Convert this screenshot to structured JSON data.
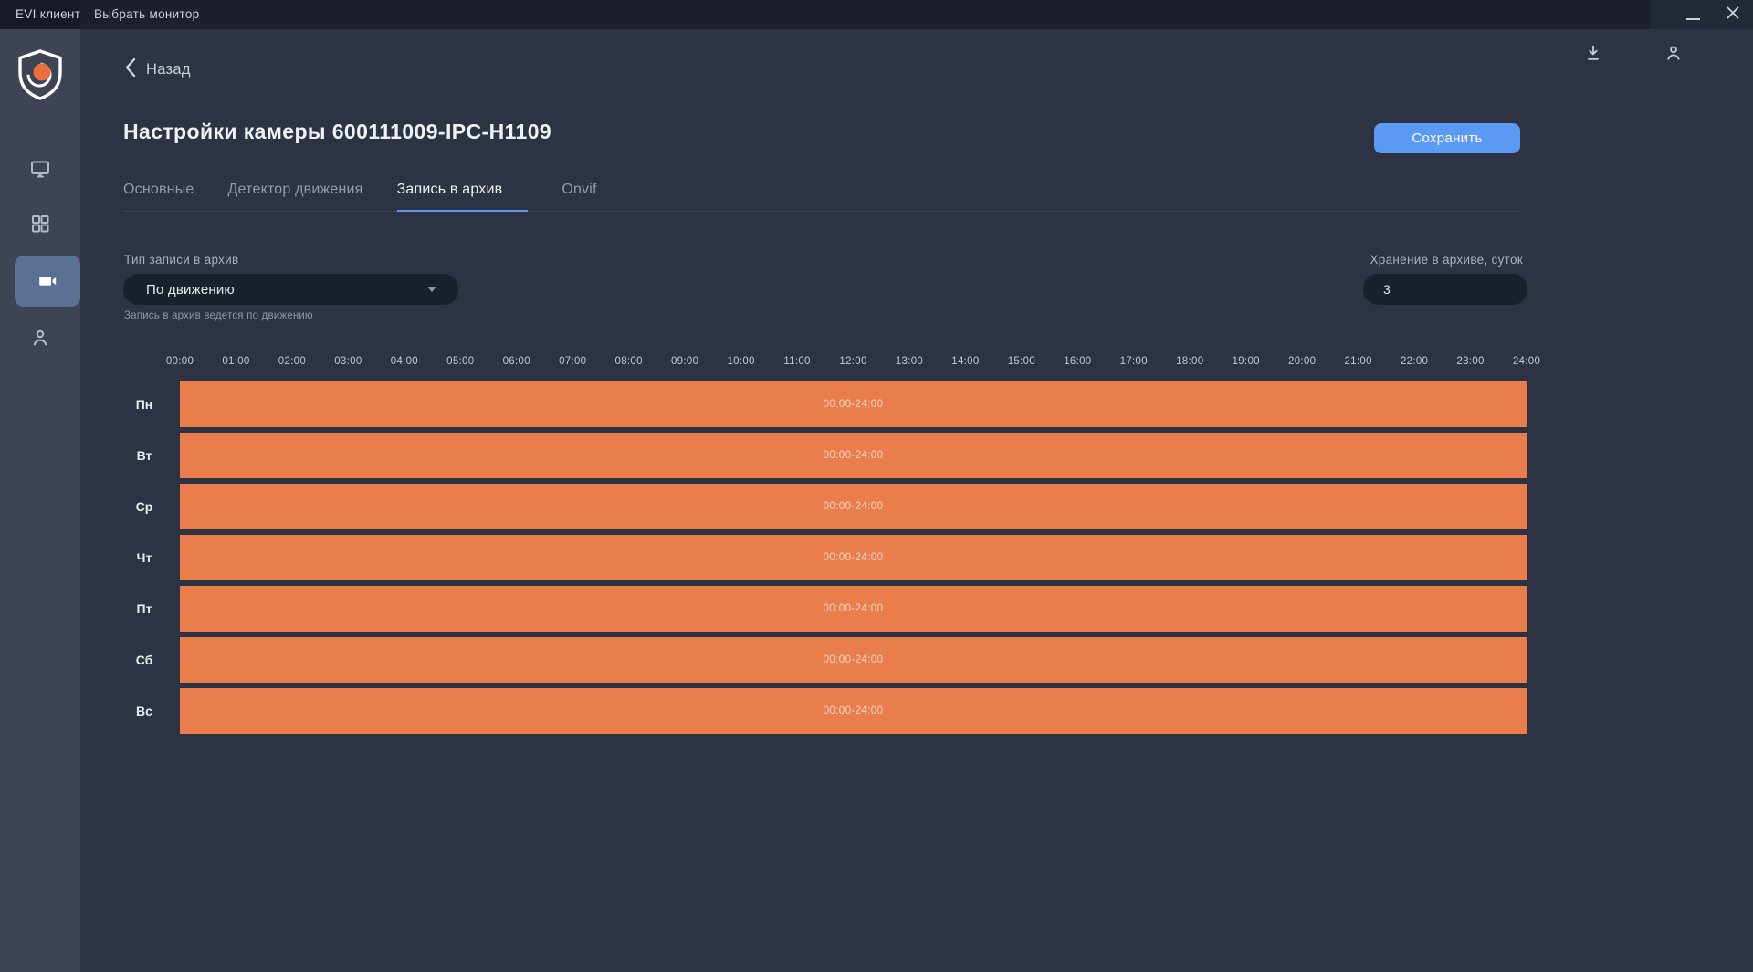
{
  "window": {
    "menu_items": [
      "EVI клиент",
      "Выбрать монитор"
    ]
  },
  "sidebar": {
    "items": [
      {
        "id": "monitors",
        "icon": "monitor-icon",
        "active": false
      },
      {
        "id": "layouts",
        "icon": "grid-icon",
        "active": false
      },
      {
        "id": "cameras",
        "icon": "videocam-icon",
        "active": true
      },
      {
        "id": "users",
        "icon": "person-icon",
        "active": false
      }
    ]
  },
  "header": {
    "back_label": "Назад",
    "title": "Настройки камеры 600111009-IPC-H1109",
    "save_label": "Сохранить"
  },
  "tabs": [
    {
      "label": "Основные",
      "active": false
    },
    {
      "label": "Детектор движения",
      "active": false
    },
    {
      "label": "Запись в архив",
      "active": true
    },
    {
      "label": "Onvif",
      "active": false
    }
  ],
  "form": {
    "record_type": {
      "label": "Тип записи в архив",
      "value": "По движению",
      "hint": "Запись в архив ведется по движению"
    },
    "storage": {
      "label": "Хранение в архиве, суток",
      "value": "3"
    }
  },
  "schedule": {
    "hour_labels": [
      "00:00",
      "01:00",
      "02:00",
      "03:00",
      "04:00",
      "05:00",
      "06:00",
      "07:00",
      "08:00",
      "09:00",
      "10:00",
      "11:00",
      "12:00",
      "13:00",
      "14:00",
      "15:00",
      "16:00",
      "17:00",
      "18:00",
      "19:00",
      "20:00",
      "21:00",
      "22:00",
      "23:00",
      "24:00"
    ],
    "days": [
      {
        "label": "Пн",
        "range": "00:00-24:00"
      },
      {
        "label": "Вт",
        "range": "00:00-24:00"
      },
      {
        "label": "Ср",
        "range": "00:00-24:00"
      },
      {
        "label": "Чт",
        "range": "00:00-24:00"
      },
      {
        "label": "Пт",
        "range": "00:00-24:00"
      },
      {
        "label": "Сб",
        "range": "00:00-24:00"
      },
      {
        "label": "Вс",
        "range": "00:00-24:00"
      }
    ]
  },
  "colors": {
    "accent_blue": "#5a99f4",
    "bar_orange": "#e97d4c",
    "active_item": "#5b7095"
  }
}
